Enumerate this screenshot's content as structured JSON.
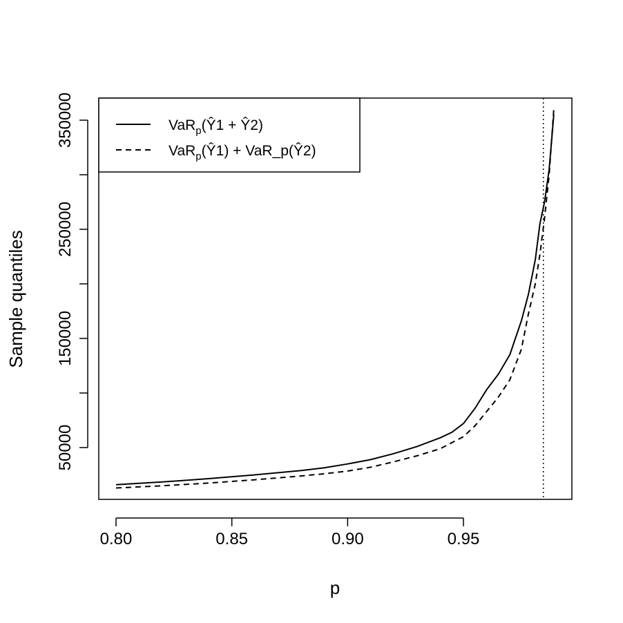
{
  "chart_data": {
    "type": "line",
    "xlabel": "p",
    "ylabel": "Sample quantiles",
    "xlim": [
      0.8,
      0.99
    ],
    "ylim": [
      0,
      370000
    ],
    "x_ticks": [
      "0.80",
      "0.85",
      "0.90",
      "0.95"
    ],
    "x_tick_values": [
      0.8,
      0.85,
      0.9,
      0.95
    ],
    "y_ticks": [
      "50000",
      "150000",
      "250000",
      "350000"
    ],
    "y_tick_values": [
      50000,
      150000,
      250000,
      350000
    ],
    "y_minor_tick_values": [
      100000,
      200000,
      300000
    ],
    "grid": false,
    "legend_position": "top-left",
    "series": [
      {
        "name": "VaR_p(Ŷ1 + Ŷ2)",
        "style": "solid",
        "color": "#000000",
        "x": [
          0.8,
          0.82,
          0.84,
          0.86,
          0.88,
          0.89,
          0.9,
          0.91,
          0.92,
          0.93,
          0.94,
          0.945,
          0.95,
          0.955,
          0.96,
          0.965,
          0.97,
          0.975,
          0.978,
          0.981,
          0.983,
          0.985,
          0.987,
          0.989
        ],
        "values": [
          16000,
          18500,
          21500,
          25000,
          29000,
          31500,
          35000,
          39000,
          44500,
          51000,
          59000,
          64000,
          72000,
          86000,
          103000,
          117000,
          135000,
          166000,
          190000,
          222000,
          255000,
          275000,
          305000,
          355000
        ]
      },
      {
        "name": "VaR_p(Ŷ1) + VaR_p(Ŷ2)",
        "style": "dashed",
        "color": "#000000",
        "x": [
          0.8,
          0.82,
          0.84,
          0.86,
          0.88,
          0.89,
          0.9,
          0.91,
          0.92,
          0.93,
          0.94,
          0.945,
          0.95,
          0.955,
          0.96,
          0.965,
          0.97,
          0.975,
          0.978,
          0.981,
          0.983,
          0.985,
          0.987,
          0.989
        ],
        "values": [
          13000,
          15000,
          17500,
          20500,
          24000,
          26000,
          28500,
          32000,
          37000,
          42500,
          49000,
          54500,
          60000,
          70000,
          83000,
          96000,
          112000,
          140000,
          172000,
          200000,
          227000,
          260000,
          300000,
          360000
        ]
      }
    ],
    "reference_line": {
      "x": 0.9845,
      "style": "dotted"
    },
    "legend": [
      {
        "label_main": "VaR",
        "sub": "p",
        "expr": "(Ŷ1 + Ŷ2)"
      },
      {
        "label_main": "VaR",
        "sub": "p",
        "expr": "(Ŷ1) + VaR_p(Ŷ2)"
      }
    ]
  }
}
